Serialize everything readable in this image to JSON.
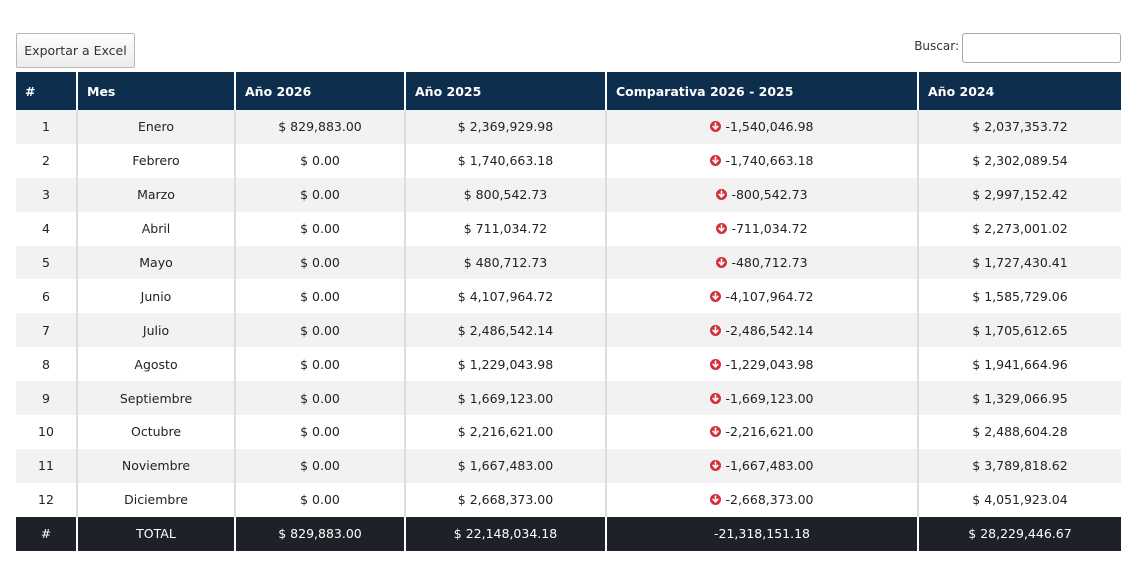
{
  "toolbar": {
    "export_label": "Exportar a Excel",
    "search_label": "Buscar:",
    "search_value": ""
  },
  "table": {
    "headers": [
      "#",
      "Mes",
      "Año 2026",
      "Año 2025",
      "Comparativa 2026 - 2025",
      "Año 2024"
    ],
    "rows": [
      {
        "num": "1",
        "mes": "Enero",
        "y2026": "$ 829,883.00",
        "y2025": "$ 2,369,929.98",
        "diff": "-1,540,046.98",
        "y2024": "$ 2,037,353.72"
      },
      {
        "num": "2",
        "mes": "Febrero",
        "y2026": "$ 0.00",
        "y2025": "$ 1,740,663.18",
        "diff": "-1,740,663.18",
        "y2024": "$ 2,302,089.54"
      },
      {
        "num": "3",
        "mes": "Marzo",
        "y2026": "$ 0.00",
        "y2025": "$ 800,542.73",
        "diff": "-800,542.73",
        "y2024": "$ 2,997,152.42"
      },
      {
        "num": "4",
        "mes": "Abril",
        "y2026": "$ 0.00",
        "y2025": "$ 711,034.72",
        "diff": "-711,034.72",
        "y2024": "$ 2,273,001.02"
      },
      {
        "num": "5",
        "mes": "Mayo",
        "y2026": "$ 0.00",
        "y2025": "$ 480,712.73",
        "diff": "-480,712.73",
        "y2024": "$ 1,727,430.41"
      },
      {
        "num": "6",
        "mes": "Junio",
        "y2026": "$ 0.00",
        "y2025": "$ 4,107,964.72",
        "diff": "-4,107,964.72",
        "y2024": "$ 1,585,729.06"
      },
      {
        "num": "7",
        "mes": "Julio",
        "y2026": "$ 0.00",
        "y2025": "$ 2,486,542.14",
        "diff": "-2,486,542.14",
        "y2024": "$ 1,705,612.65"
      },
      {
        "num": "8",
        "mes": "Agosto",
        "y2026": "$ 0.00",
        "y2025": "$ 1,229,043.98",
        "diff": "-1,229,043.98",
        "y2024": "$ 1,941,664.96"
      },
      {
        "num": "9",
        "mes": "Septiembre",
        "y2026": "$ 0.00",
        "y2025": "$ 1,669,123.00",
        "diff": "-1,669,123.00",
        "y2024": "$ 1,329,066.95"
      },
      {
        "num": "10",
        "mes": "Octubre",
        "y2026": "$ 0.00",
        "y2025": "$ 2,216,621.00",
        "diff": "-2,216,621.00",
        "y2024": "$ 2,488,604.28"
      },
      {
        "num": "11",
        "mes": "Noviembre",
        "y2026": "$ 0.00",
        "y2025": "$ 1,667,483.00",
        "diff": "-1,667,483.00",
        "y2024": "$ 3,789,818.62"
      },
      {
        "num": "12",
        "mes": "Diciembre",
        "y2026": "$ 0.00",
        "y2025": "$ 2,668,373.00",
        "diff": "-2,668,373.00",
        "y2024": "$ 4,051,923.04"
      }
    ],
    "total": {
      "num": "#",
      "mes": "TOTAL",
      "y2026": "$ 829,883.00",
      "y2025": "$ 22,148,034.18",
      "diff": "-21,318,151.18",
      "y2024": "$ 28,229,446.67"
    }
  },
  "colors": {
    "header_bg": "#0d2f4d",
    "footer_bg": "#1e2228",
    "decrease_icon": "#d32f3a"
  },
  "icons": {
    "decrease": "arrow-down-circle-icon"
  }
}
